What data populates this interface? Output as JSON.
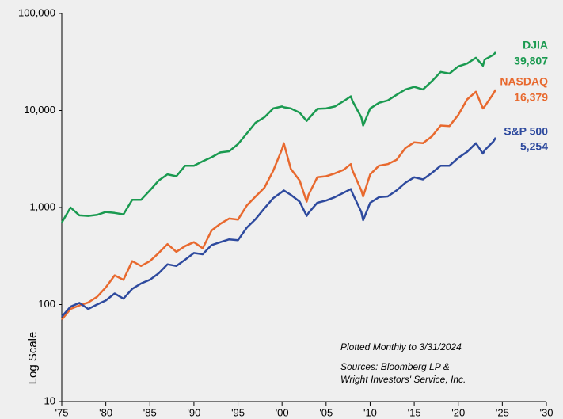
{
  "chart_data": {
    "type": "line",
    "y_label": "Log Scale",
    "log_y": true,
    "grid": false,
    "annotations": [
      "Plotted Monthly to 3/31/2024",
      "Sources: Bloomberg LP &",
      "Wright Investors' Service, Inc."
    ],
    "x": [
      1975,
      1976,
      1977,
      1978,
      1979,
      1980,
      1981,
      1982,
      1983,
      1984,
      1985,
      1986,
      1987,
      1988,
      1989,
      1990,
      1991,
      1992,
      1993,
      1994,
      1995,
      1996,
      1997,
      1998,
      1999,
      2000,
      2000.2,
      2001,
      2002,
      2002.8,
      2003,
      2004,
      2005,
      2006,
      2007,
      2007.8,
      2008,
      2009,
      2009.2,
      2010,
      2011,
      2012,
      2013,
      2014,
      2015,
      2016,
      2017,
      2018,
      2019,
      2020,
      2021,
      2022,
      2022.8,
      2023,
      2024,
      2024.25
    ],
    "xlim": [
      1975,
      2030
    ],
    "xticks": [
      {
        "value": 1975,
        "label": "'75"
      },
      {
        "value": 1980,
        "label": "'80"
      },
      {
        "value": 1985,
        "label": "'85"
      },
      {
        "value": 1990,
        "label": "'90"
      },
      {
        "value": 1995,
        "label": "'95"
      },
      {
        "value": 2000,
        "label": "'00"
      },
      {
        "value": 2005,
        "label": "'05"
      },
      {
        "value": 2010,
        "label": "'10"
      },
      {
        "value": 2015,
        "label": "'15"
      },
      {
        "value": 2020,
        "label": "'20"
      },
      {
        "value": 2025,
        "label": "'25"
      },
      {
        "value": 2030,
        "label": "'30"
      }
    ],
    "ylim": [
      10,
      100000
    ],
    "yticks": [
      10,
      100,
      {
        "value": 1000,
        "label": "1,000"
      },
      {
        "value": 10000,
        "label": "10,000"
      },
      {
        "value": 100000,
        "label": "100,000"
      }
    ],
    "series": [
      {
        "name": "DJIA",
        "color": "#1a9a50",
        "end_label": "39,807",
        "values": [
          700,
          1000,
          830,
          820,
          840,
          900,
          880,
          850,
          1200,
          1200,
          1500,
          1900,
          2200,
          2100,
          2700,
          2700,
          3000,
          3300,
          3700,
          3800,
          4500,
          5800,
          7500,
          8500,
          10500,
          11000,
          10800,
          10500,
          9500,
          7800,
          8200,
          10400,
          10500,
          11000,
          12500,
          14000,
          12500,
          8500,
          7000,
          10500,
          12000,
          12700,
          14500,
          16500,
          17500,
          16500,
          20000,
          25000,
          24000,
          28500,
          30500,
          35000,
          29000,
          33500,
          37500,
          39807
        ]
      },
      {
        "name": "NASDAQ",
        "color": "#e8692e",
        "end_label": "16,379",
        "values": [
          70,
          90,
          98,
          105,
          120,
          150,
          200,
          180,
          280,
          250,
          280,
          340,
          420,
          350,
          400,
          440,
          380,
          580,
          680,
          770,
          750,
          1050,
          1300,
          1600,
          2400,
          4000,
          4600,
          2500,
          1900,
          1150,
          1350,
          2050,
          2100,
          2250,
          2450,
          2800,
          2400,
          1500,
          1300,
          2200,
          2700,
          2800,
          3100,
          4100,
          4700,
          4600,
          5400,
          7000,
          6900,
          9000,
          13000,
          15600,
          10500,
          11000,
          15000,
          16379
        ]
      },
      {
        "name": "S&P 500",
        "color": "#2e4a9e",
        "end_label": "5,254",
        "values": [
          75,
          95,
          104,
          90,
          100,
          110,
          130,
          115,
          145,
          165,
          180,
          210,
          260,
          250,
          290,
          340,
          330,
          410,
          440,
          470,
          460,
          620,
          760,
          980,
          1250,
          1450,
          1500,
          1350,
          1150,
          820,
          880,
          1120,
          1180,
          1280,
          1420,
          1550,
          1400,
          900,
          740,
          1120,
          1280,
          1300,
          1500,
          1800,
          2050,
          1950,
          2270,
          2700,
          2700,
          3250,
          3750,
          4600,
          3600,
          3900,
          4800,
          5254
        ]
      }
    ]
  }
}
